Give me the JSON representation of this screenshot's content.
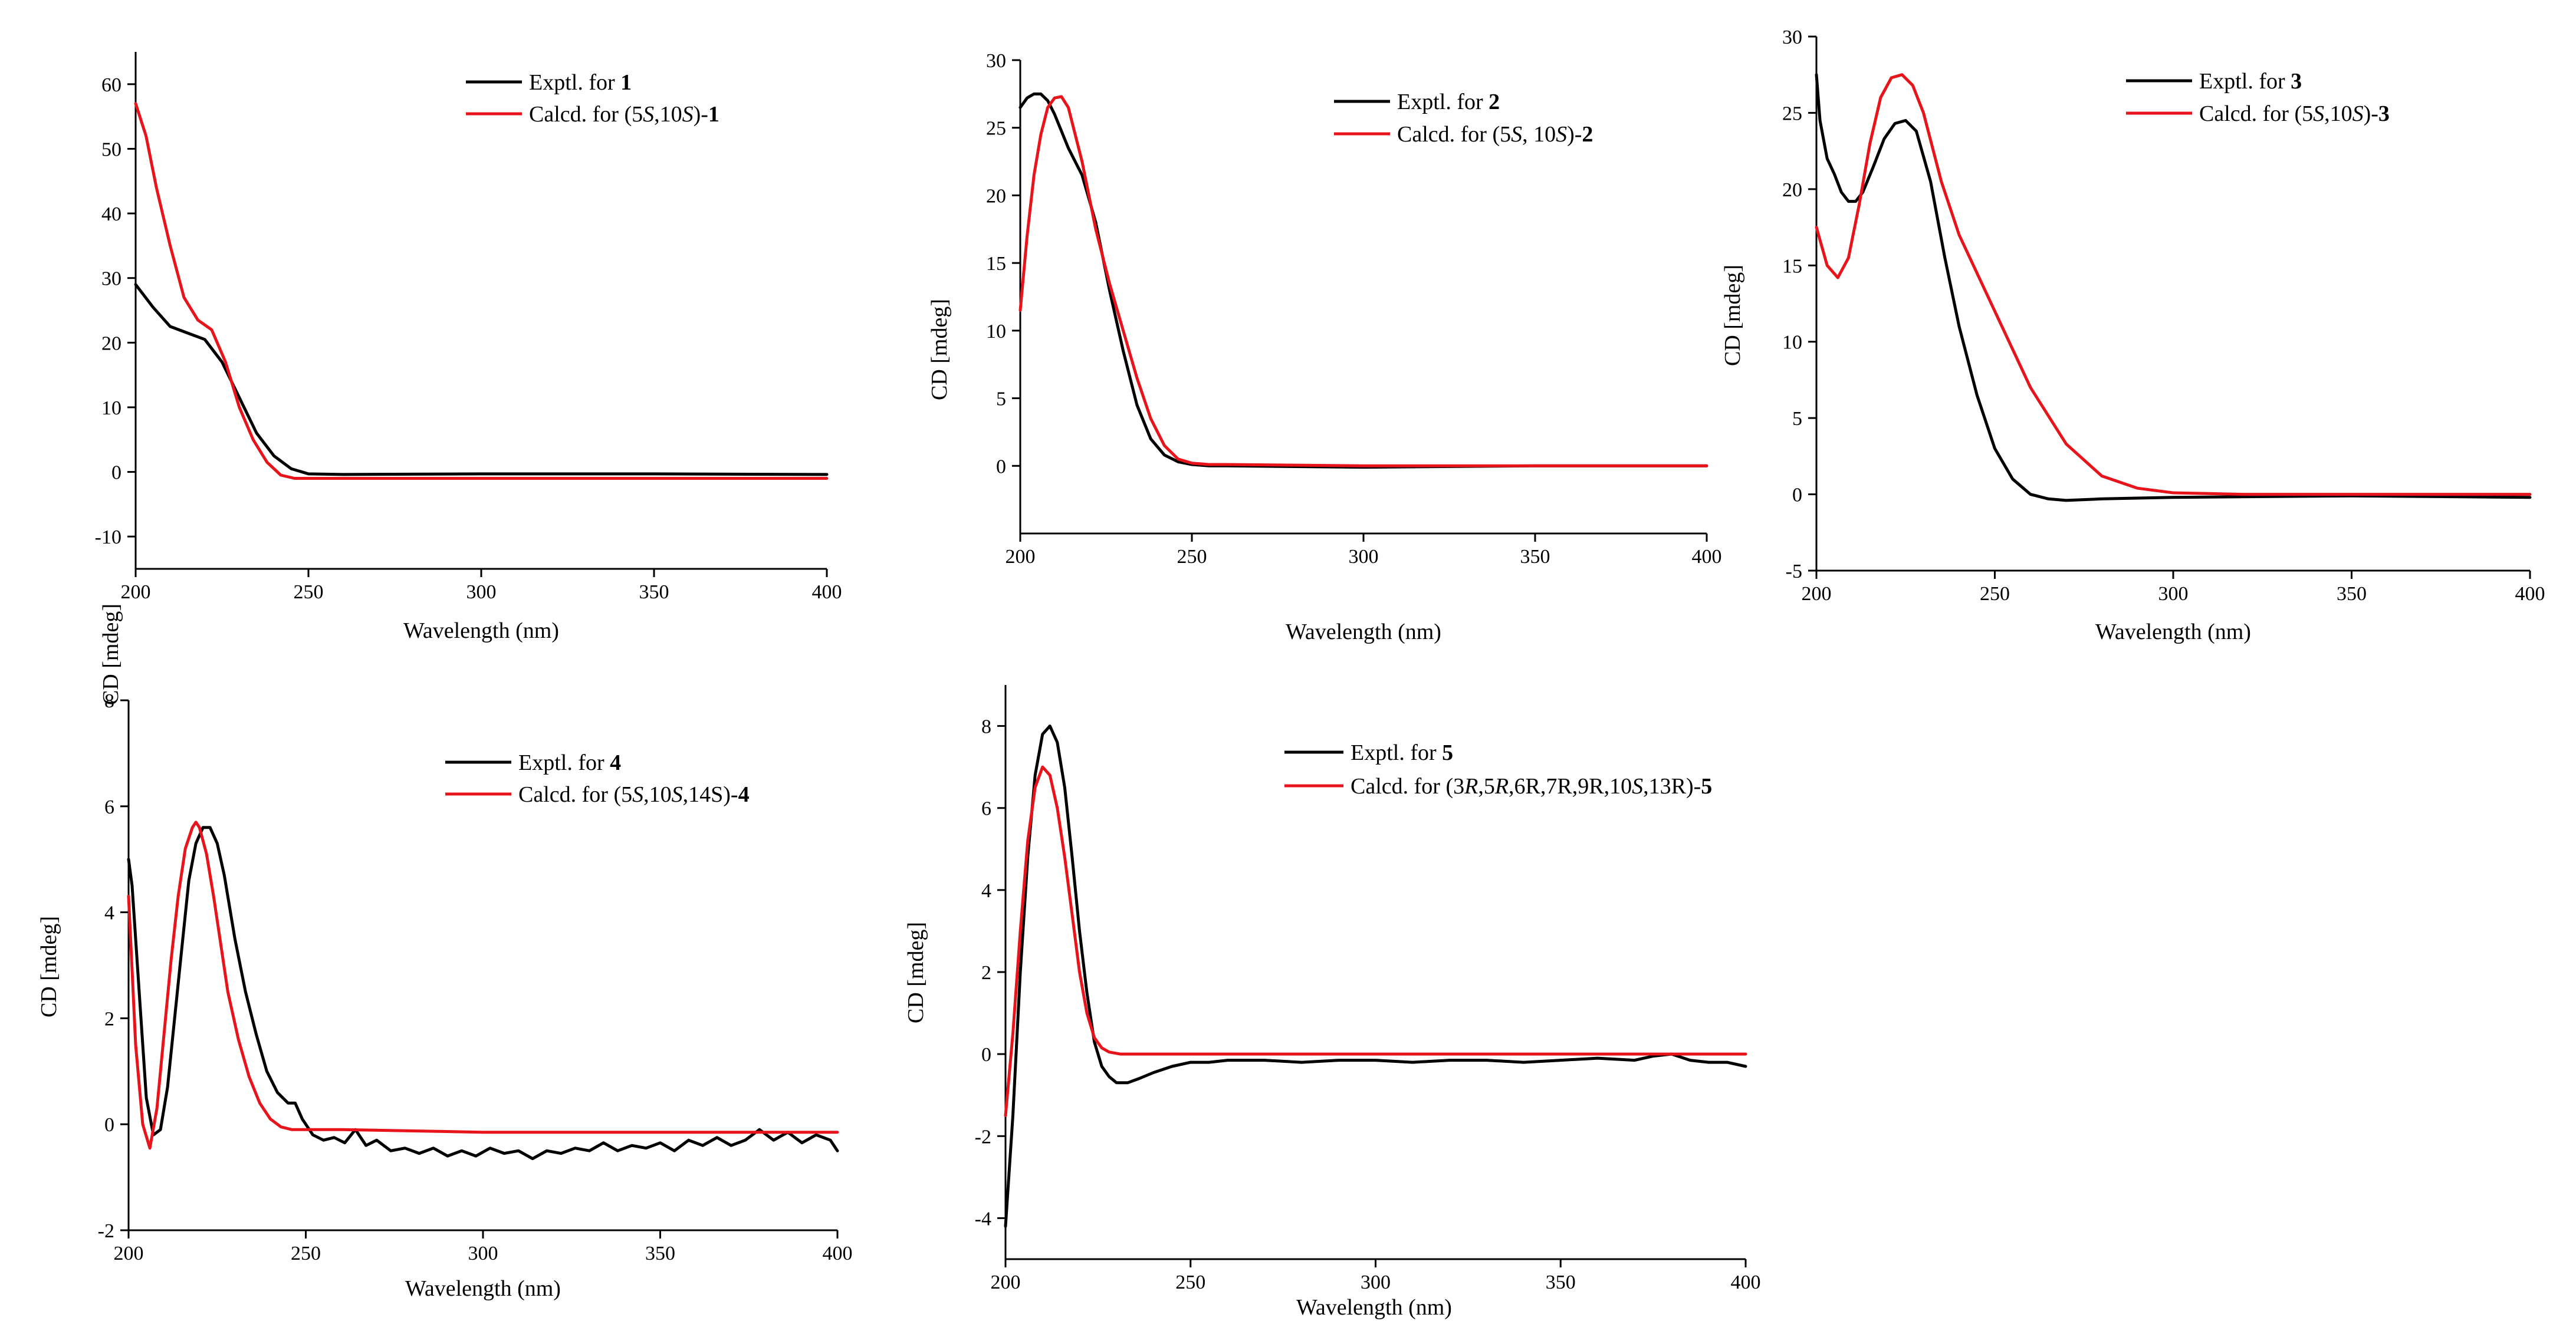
{
  "colors": {
    "experimental": "#000000",
    "calculated": "#e8141b"
  },
  "chart_data": [
    {
      "type": "line",
      "panel": "1",
      "xlabel": "Wavelength (nm)",
      "ylabel": "CD [mdeg]",
      "xlim": [
        200,
        400
      ],
      "ylim": [
        -15,
        65
      ],
      "xticks": [
        200,
        250,
        300,
        350,
        400
      ],
      "yticks": [
        -10,
        0,
        10,
        20,
        30,
        40,
        50,
        60
      ],
      "legend_position": "top-right",
      "series": [
        {
          "name": "Exptl. for 1",
          "legend_parts": [
            [
              "Exptl. for ",
              ""
            ],
            [
              "1",
              "b"
            ]
          ],
          "color": "#000000",
          "x": [
            200,
            205,
            210,
            215,
            220,
            225,
            230,
            235,
            240,
            245,
            250,
            260,
            300,
            350,
            400
          ],
          "y": [
            29,
            25.5,
            22.5,
            21.5,
            20.5,
            17,
            11.5,
            6,
            2.5,
            0.5,
            -0.3,
            -0.4,
            -0.3,
            -0.3,
            -0.4
          ]
        },
        {
          "name": "Calcd. for (5S,10S)-1",
          "legend_parts": [
            [
              "Calcd. for (5",
              ""
            ],
            [
              "S",
              "i"
            ],
            [
              ",10",
              ""
            ],
            [
              "S",
              "i"
            ],
            [
              ")-",
              ""
            ],
            [
              "1",
              "b"
            ]
          ],
          "color": "#e8141b",
          "x": [
            200,
            203,
            206,
            210,
            214,
            218,
            222,
            226,
            230,
            234,
            238,
            242,
            246,
            250,
            300,
            350,
            400
          ],
          "y": [
            57,
            52,
            44,
            35,
            27,
            23.5,
            22,
            17,
            10,
            5,
            1.5,
            -0.5,
            -1,
            -1,
            -1,
            -1,
            -1
          ]
        }
      ]
    },
    {
      "type": "line",
      "panel": "2",
      "xlabel": "Wavelength (nm)",
      "ylabel": "CD [mdeg]",
      "xlim": [
        200,
        400
      ],
      "ylim": [
        -5,
        30
      ],
      "xticks": [
        200,
        250,
        300,
        350,
        400
      ],
      "yticks": [
        0,
        5,
        10,
        15,
        20,
        25,
        30
      ],
      "legend_position": "top-right",
      "series": [
        {
          "name": "Exptl. for 2",
          "legend_parts": [
            [
              "Exptl. for ",
              ""
            ],
            [
              "2",
              "b"
            ]
          ],
          "color": "#000000",
          "x": [
            200,
            202,
            204,
            206,
            208,
            210,
            214,
            218,
            222,
            226,
            230,
            234,
            238,
            242,
            246,
            250,
            255,
            260,
            300,
            350,
            400
          ],
          "y": [
            26.5,
            27.2,
            27.5,
            27.5,
            27,
            26,
            23.5,
            21.5,
            18,
            13,
            8.5,
            4.5,
            2,
            0.8,
            0.3,
            0.1,
            0,
            0,
            -0.1,
            0,
            0
          ]
        },
        {
          "name": "Calcd. for (5S, 10S)-2",
          "legend_parts": [
            [
              "Calcd. for (5",
              ""
            ],
            [
              "S",
              "i"
            ],
            [
              ", 10",
              ""
            ],
            [
              "S",
              "i"
            ],
            [
              ")-",
              ""
            ],
            [
              "2",
              "b"
            ]
          ],
          "color": "#e8141b",
          "x": [
            200,
            202,
            204,
            206,
            208,
            210,
            212,
            214,
            218,
            222,
            226,
            230,
            234,
            238,
            242,
            246,
            250,
            255,
            260,
            300,
            350,
            400
          ],
          "y": [
            11.5,
            17,
            21.5,
            24.5,
            26.5,
            27.2,
            27.3,
            26.5,
            22.5,
            17.5,
            13.5,
            10,
            6.5,
            3.5,
            1.5,
            0.5,
            0.2,
            0.1,
            0.1,
            0,
            0,
            0
          ]
        }
      ]
    },
    {
      "type": "line",
      "panel": "3",
      "xlabel": "Wavelength (nm)",
      "ylabel": "CD [mdeg]",
      "xlim": [
        200,
        400
      ],
      "ylim": [
        -5,
        30
      ],
      "xticks": [
        200,
        250,
        300,
        350,
        400
      ],
      "yticks": [
        -5,
        0,
        5,
        10,
        15,
        20,
        25,
        30
      ],
      "legend_position": "top-right",
      "series": [
        {
          "name": "Exptl. for 3",
          "legend_parts": [
            [
              "Exptl. for ",
              ""
            ],
            [
              "3",
              "b"
            ]
          ],
          "color": "#000000",
          "x": [
            200,
            201,
            203,
            205,
            207,
            209,
            211,
            213,
            216,
            219,
            222,
            225,
            228,
            232,
            236,
            240,
            245,
            250,
            255,
            260,
            265,
            270,
            280,
            300,
            350,
            400
          ],
          "y": [
            27.5,
            24.5,
            22,
            21,
            19.8,
            19.2,
            19.2,
            19.8,
            21.5,
            23.3,
            24.3,
            24.5,
            23.8,
            20.5,
            15.5,
            11,
            6.5,
            3,
            1,
            0,
            -0.3,
            -0.4,
            -0.3,
            -0.2,
            -0.1,
            -0.2
          ]
        },
        {
          "name": "Calcd. for (5S,10S)-3",
          "legend_parts": [
            [
              "Calcd. for (5",
              ""
            ],
            [
              "S",
              "i"
            ],
            [
              ",10",
              ""
            ],
            [
              "S",
              "i"
            ],
            [
              ")-",
              ""
            ],
            [
              "3",
              "b"
            ]
          ],
          "color": "#e8141b",
          "x": [
            200,
            203,
            206,
            209,
            212,
            215,
            218,
            221,
            224,
            227,
            230,
            235,
            240,
            250,
            260,
            270,
            280,
            290,
            300,
            320,
            350,
            400
          ],
          "y": [
            17.5,
            15,
            14.2,
            15.5,
            19,
            23,
            26,
            27.3,
            27.5,
            26.8,
            25,
            20.5,
            17,
            12,
            7,
            3.3,
            1.2,
            0.4,
            0.1,
            0,
            0,
            0
          ]
        }
      ]
    },
    {
      "type": "line",
      "panel": "4",
      "xlabel": "Wavelength (nm)",
      "ylabel": "CD [mdeg]",
      "xlim": [
        200,
        400
      ],
      "ylim": [
        -2,
        8
      ],
      "xticks": [
        200,
        250,
        300,
        350,
        400
      ],
      "yticks": [
        -2,
        0,
        2,
        4,
        6,
        8
      ],
      "legend_position": "top-right",
      "series": [
        {
          "name": "Exptl. for 4",
          "legend_parts": [
            [
              "Exptl. for ",
              ""
            ],
            [
              "4",
              "b"
            ]
          ],
          "color": "#000000",
          "x": [
            200,
            201,
            203,
            205,
            207,
            209,
            211,
            213,
            215,
            217,
            219,
            221,
            223,
            225,
            227,
            230,
            233,
            236,
            239,
            242,
            245,
            247,
            249,
            252,
            255,
            258,
            261,
            264,
            267,
            270,
            274,
            278,
            282,
            286,
            290,
            294,
            298,
            302,
            306,
            310,
            314,
            318,
            322,
            326,
            330,
            334,
            338,
            342,
            346,
            350,
            354,
            358,
            362,
            366,
            370,
            374,
            378,
            382,
            386,
            390,
            394,
            398,
            400
          ],
          "y": [
            5,
            4.5,
            2.5,
            0.5,
            -0.2,
            -0.1,
            0.7,
            2,
            3.3,
            4.6,
            5.3,
            5.6,
            5.6,
            5.3,
            4.7,
            3.5,
            2.5,
            1.7,
            1,
            0.6,
            0.4,
            0.4,
            0.1,
            -0.2,
            -0.3,
            -0.25,
            -0.35,
            -0.1,
            -0.4,
            -0.3,
            -0.5,
            -0.45,
            -0.55,
            -0.45,
            -0.6,
            -0.5,
            -0.6,
            -0.45,
            -0.55,
            -0.5,
            -0.65,
            -0.5,
            -0.55,
            -0.45,
            -0.5,
            -0.35,
            -0.5,
            -0.4,
            -0.45,
            -0.35,
            -0.5,
            -0.3,
            -0.4,
            -0.25,
            -0.4,
            -0.3,
            -0.1,
            -0.3,
            -0.15,
            -0.35,
            -0.2,
            -0.3,
            -0.5
          ]
        },
        {
          "name": "Calcd. for (5S,10S,14S)-4",
          "legend_parts": [
            [
              "Calcd. for (5",
              ""
            ],
            [
              "S",
              "i"
            ],
            [
              ",10",
              ""
            ],
            [
              "S",
              "i"
            ],
            [
              ",14S)-",
              ""
            ],
            [
              "4",
              "b"
            ]
          ],
          "color": "#e8141b",
          "x": [
            200,
            202,
            204,
            206,
            208,
            210,
            212,
            214,
            216,
            218,
            219,
            220,
            222,
            224,
            226,
            228,
            231,
            234,
            237,
            240,
            243,
            246,
            250,
            260,
            300,
            350,
            400
          ],
          "y": [
            4.3,
            1.5,
            0,
            -0.45,
            0.3,
            1.7,
            3.1,
            4.3,
            5.2,
            5.6,
            5.7,
            5.6,
            5.1,
            4.3,
            3.4,
            2.5,
            1.6,
            0.9,
            0.4,
            0.1,
            -0.05,
            -0.1,
            -0.1,
            -0.1,
            -0.15,
            -0.15,
            -0.15
          ]
        }
      ]
    },
    {
      "type": "line",
      "panel": "5",
      "xlabel": "Wavelength (nm)",
      "ylabel": "CD [mdeg]",
      "xlim": [
        200,
        400
      ],
      "ylim": [
        -5,
        9
      ],
      "xticks": [
        200,
        250,
        300,
        350,
        400
      ],
      "yticks": [
        -4,
        -2,
        0,
        2,
        4,
        6,
        8
      ],
      "legend_position": "top-right",
      "series": [
        {
          "name": "Exptl. for 5",
          "legend_parts": [
            [
              "Exptl. for ",
              ""
            ],
            [
              "5",
              "b"
            ]
          ],
          "color": "#000000",
          "x": [
            200,
            202,
            204,
            206,
            208,
            210,
            212,
            214,
            216,
            218,
            220,
            222,
            224,
            226,
            228,
            230,
            233,
            236,
            240,
            245,
            250,
            255,
            260,
            270,
            280,
            290,
            300,
            310,
            320,
            330,
            340,
            350,
            360,
            370,
            375,
            380,
            385,
            390,
            395,
            400
          ],
          "y": [
            -4.2,
            -1.5,
            2,
            4.8,
            6.8,
            7.8,
            8,
            7.6,
            6.5,
            4.8,
            3,
            1.5,
            0.3,
            -0.3,
            -0.55,
            -0.7,
            -0.7,
            -0.6,
            -0.45,
            -0.3,
            -0.2,
            -0.2,
            -0.15,
            -0.15,
            -0.2,
            -0.15,
            -0.15,
            -0.2,
            -0.15,
            -0.15,
            -0.2,
            -0.15,
            -0.1,
            -0.15,
            -0.05,
            0,
            -0.15,
            -0.2,
            -0.2,
            -0.3
          ]
        },
        {
          "name": "Calcd. for (3R,5R,6R,7R,9R,10S,13R)-5",
          "legend_parts": [
            [
              "Calcd. for (3",
              ""
            ],
            [
              "R",
              "i"
            ],
            [
              ",5",
              ""
            ],
            [
              "R",
              "i"
            ],
            [
              ",6R,7R,9R,10",
              ""
            ],
            [
              "S",
              "i"
            ],
            [
              ",13R)-",
              ""
            ],
            [
              "5",
              "b"
            ]
          ],
          "color": "#e8141b",
          "x": [
            200,
            202,
            204,
            206,
            208,
            210,
            212,
            214,
            216,
            218,
            220,
            222,
            224,
            226,
            228,
            231,
            234,
            240,
            250,
            300,
            350,
            400
          ],
          "y": [
            -1.5,
            0.5,
            3,
            5.2,
            6.5,
            7,
            6.8,
            6,
            4.8,
            3.4,
            2,
            1,
            0.4,
            0.15,
            0.05,
            0,
            0,
            0,
            0,
            0,
            0,
            0
          ]
        }
      ]
    }
  ]
}
